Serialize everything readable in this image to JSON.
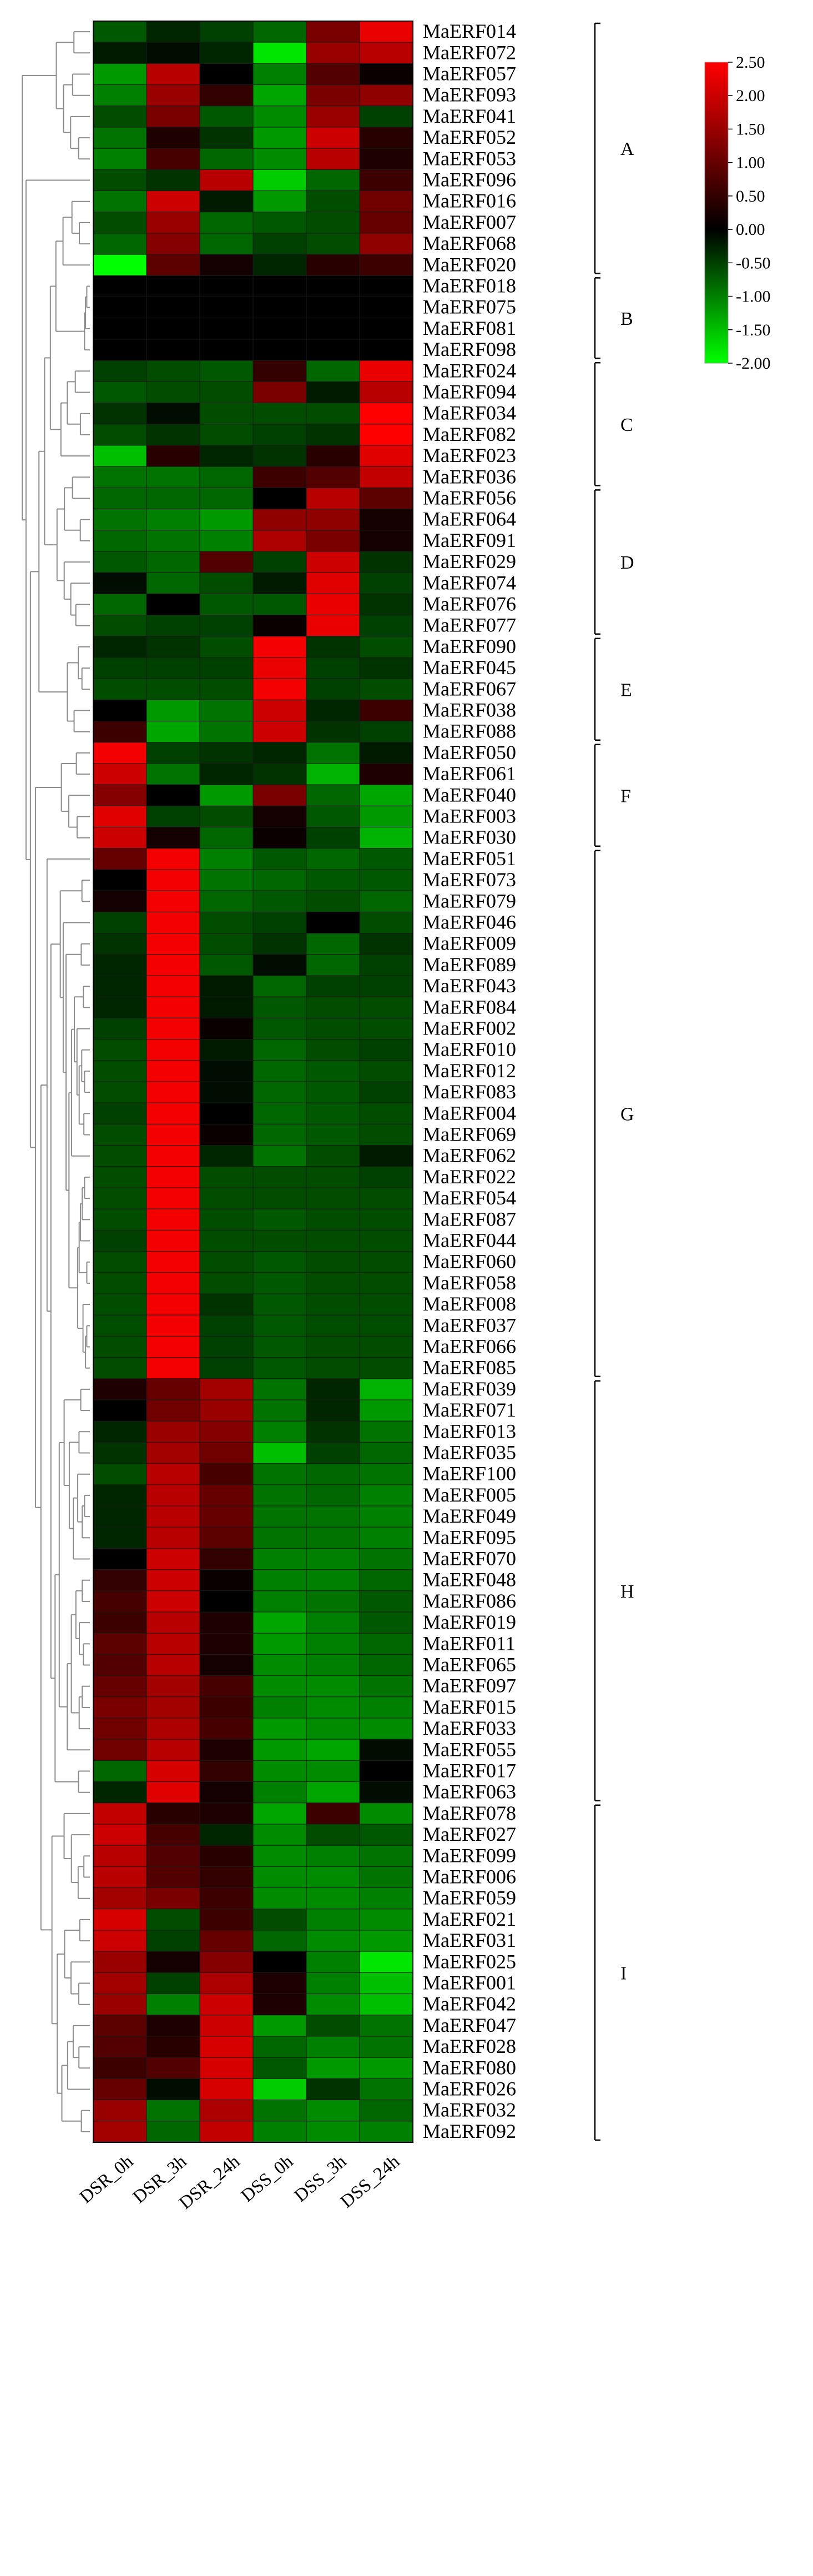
{
  "chart_data": {
    "type": "heatmap",
    "title": "",
    "columns": [
      "DSR_0h",
      "DSR_3h",
      "DSR_24h",
      "DSS_0h",
      "DSS_3h",
      "DSS_24h"
    ],
    "color_scale": {
      "min": -2.0,
      "max": 2.5,
      "colors": {
        "low": "#00ff00",
        "mid": "#000000",
        "high": "#ff0000"
      },
      "ticks": [
        "2.50",
        "2.00",
        "1.50",
        "1.00",
        "0.50",
        "0.00",
        "-0.50",
        "-1.00",
        "-1.50",
        "-2.00"
      ]
    },
    "rows": [
      {
        "gene": "MaERF014",
        "values": [
          -0.7,
          -0.3,
          -0.5,
          -0.8,
          1.2,
          2.3
        ]
      },
      {
        "gene": "MaERF072",
        "values": [
          -0.2,
          -0.1,
          -0.3,
          -1.8,
          1.5,
          1.8
        ]
      },
      {
        "gene": "MaERF057",
        "values": [
          -1.2,
          1.8,
          0.0,
          -1.0,
          0.8,
          0.1
        ]
      },
      {
        "gene": "MaERF093",
        "values": [
          -1.0,
          1.5,
          0.5,
          -1.3,
          1.2,
          1.4
        ]
      },
      {
        "gene": "MaERF041",
        "values": [
          -0.6,
          1.2,
          -0.7,
          -1.1,
          1.5,
          -0.5
        ]
      },
      {
        "gene": "MaERF052",
        "values": [
          -0.9,
          0.3,
          -0.4,
          -1.2,
          2.0,
          0.4
        ]
      },
      {
        "gene": "MaERF053",
        "values": [
          -1.0,
          0.7,
          -0.8,
          -1.1,
          1.8,
          0.3
        ]
      },
      {
        "gene": "MaERF096",
        "values": [
          -0.6,
          -0.4,
          1.8,
          -1.6,
          -0.8,
          0.6
        ]
      },
      {
        "gene": "MaERF016",
        "values": [
          -0.9,
          2.0,
          -0.2,
          -1.2,
          -0.6,
          1.1
        ]
      },
      {
        "gene": "MaERF007",
        "values": [
          -0.6,
          1.5,
          -0.8,
          -0.7,
          -0.6,
          1.0
        ]
      },
      {
        "gene": "MaERF068",
        "values": [
          -0.8,
          1.3,
          -0.8,
          -0.5,
          -0.6,
          1.4
        ]
      },
      {
        "gene": "MaERF020",
        "values": [
          -2.0,
          0.9,
          0.2,
          -0.3,
          0.4,
          0.6
        ]
      },
      {
        "gene": "MaERF018",
        "values": [
          0.0,
          0.0,
          0.0,
          0.0,
          0.0,
          0.0
        ]
      },
      {
        "gene": "MaERF075",
        "values": [
          0.0,
          0.0,
          0.0,
          0.0,
          0.0,
          0.0
        ]
      },
      {
        "gene": "MaERF081",
        "values": [
          0.0,
          0.0,
          0.0,
          0.0,
          0.0,
          0.0
        ]
      },
      {
        "gene": "MaERF098",
        "values": [
          0.0,
          0.0,
          0.0,
          0.0,
          0.0,
          0.0
        ]
      },
      {
        "gene": "MaERF024",
        "values": [
          -0.5,
          -0.6,
          -0.7,
          0.5,
          -0.8,
          2.3
        ]
      },
      {
        "gene": "MaERF094",
        "values": [
          -0.7,
          -0.6,
          -0.6,
          1.2,
          -0.2,
          1.8
        ]
      },
      {
        "gene": "MaERF034",
        "values": [
          -0.4,
          -0.1,
          -0.6,
          -0.6,
          -0.6,
          2.5
        ]
      },
      {
        "gene": "MaERF082",
        "values": [
          -0.6,
          -0.4,
          -0.6,
          -0.5,
          -0.4,
          2.5
        ]
      },
      {
        "gene": "MaERF023",
        "values": [
          -1.5,
          0.4,
          -0.3,
          -0.4,
          0.4,
          2.2
        ]
      },
      {
        "gene": "MaERF036",
        "values": [
          -0.9,
          -0.9,
          -0.8,
          0.6,
          0.8,
          1.9
        ]
      },
      {
        "gene": "MaERF056",
        "values": [
          -0.8,
          -0.8,
          -0.8,
          0.0,
          1.8,
          0.9
        ]
      },
      {
        "gene": "MaERF064",
        "values": [
          -0.9,
          -1.0,
          -1.2,
          1.4,
          1.4,
          0.2
        ]
      },
      {
        "gene": "MaERF091",
        "values": [
          -0.8,
          -0.9,
          -1.0,
          1.7,
          1.2,
          0.2
        ]
      },
      {
        "gene": "MaERF029",
        "values": [
          -0.7,
          -0.8,
          0.8,
          -0.5,
          2.0,
          -0.4
        ]
      },
      {
        "gene": "MaERF074",
        "values": [
          -0.1,
          -0.8,
          -0.6,
          -0.2,
          2.2,
          -0.5
        ]
      },
      {
        "gene": "MaERF076",
        "values": [
          -0.8,
          0.0,
          -0.7,
          -0.7,
          2.3,
          -0.4
        ]
      },
      {
        "gene": "MaERF077",
        "values": [
          -0.6,
          -0.5,
          -0.5,
          0.1,
          2.3,
          -0.5
        ]
      },
      {
        "gene": "MaERF090",
        "values": [
          -0.3,
          -0.4,
          -0.6,
          2.4,
          -0.4,
          -0.6
        ]
      },
      {
        "gene": "MaERF045",
        "values": [
          -0.5,
          -0.5,
          -0.5,
          2.3,
          -0.5,
          -0.4
        ]
      },
      {
        "gene": "MaERF067",
        "values": [
          -0.6,
          -0.6,
          -0.6,
          2.4,
          -0.5,
          -0.6
        ]
      },
      {
        "gene": "MaERF038",
        "values": [
          0.0,
          -1.2,
          -0.9,
          2.0,
          -0.3,
          0.6
        ]
      },
      {
        "gene": "MaERF088",
        "values": [
          0.6,
          -1.3,
          -0.9,
          2.0,
          -0.4,
          -0.5
        ]
      },
      {
        "gene": "MaERF050",
        "values": [
          2.4,
          -0.5,
          -0.4,
          -0.3,
          -0.9,
          -0.2
        ]
      },
      {
        "gene": "MaERF061",
        "values": [
          2.0,
          -0.9,
          -0.3,
          -0.4,
          -1.4,
          0.3
        ]
      },
      {
        "gene": "MaERF040",
        "values": [
          1.3,
          0.0,
          -1.2,
          1.2,
          -0.8,
          -1.3
        ]
      },
      {
        "gene": "MaERF003",
        "values": [
          2.2,
          -0.5,
          -0.6,
          0.2,
          -0.7,
          -1.2
        ]
      },
      {
        "gene": "MaERF030",
        "values": [
          2.0,
          0.2,
          -0.8,
          0.1,
          -0.5,
          -1.4
        ]
      },
      {
        "gene": "MaERF051",
        "values": [
          1.0,
          2.4,
          -1.0,
          -0.7,
          -0.8,
          -0.7
        ]
      },
      {
        "gene": "MaERF073",
        "values": [
          0.0,
          2.4,
          -0.9,
          -0.8,
          -0.7,
          -0.7
        ]
      },
      {
        "gene": "MaERF079",
        "values": [
          0.2,
          2.4,
          -0.8,
          -0.7,
          -0.6,
          -0.8
        ]
      },
      {
        "gene": "MaERF046",
        "values": [
          -0.5,
          2.4,
          -0.6,
          -0.5,
          0.0,
          -0.6
        ]
      },
      {
        "gene": "MaERF009",
        "values": [
          -0.4,
          2.4,
          -0.6,
          -0.4,
          -0.8,
          -0.4
        ]
      },
      {
        "gene": "MaERF089",
        "values": [
          -0.3,
          2.4,
          -0.7,
          -0.1,
          -0.8,
          -0.5
        ]
      },
      {
        "gene": "MaERF043",
        "values": [
          -0.3,
          2.4,
          -0.2,
          -0.8,
          -0.5,
          -0.5
        ]
      },
      {
        "gene": "MaERF084",
        "values": [
          -0.3,
          2.4,
          -0.2,
          -0.7,
          -0.6,
          -0.6
        ]
      },
      {
        "gene": "MaERF002",
        "values": [
          -0.5,
          2.4,
          0.1,
          -0.7,
          -0.6,
          -0.6
        ]
      },
      {
        "gene": "MaERF010",
        "values": [
          -0.6,
          2.4,
          -0.2,
          -0.8,
          -0.6,
          -0.5
        ]
      },
      {
        "gene": "MaERF012",
        "values": [
          -0.6,
          2.4,
          -0.1,
          -0.8,
          -0.7,
          -0.6
        ]
      },
      {
        "gene": "MaERF083",
        "values": [
          -0.6,
          2.4,
          -0.1,
          -0.8,
          -0.7,
          -0.5
        ]
      },
      {
        "gene": "MaERF004",
        "values": [
          -0.5,
          2.4,
          0.0,
          -0.8,
          -0.7,
          -0.6
        ]
      },
      {
        "gene": "MaERF069",
        "values": [
          -0.6,
          2.4,
          0.1,
          -0.8,
          -0.7,
          -0.6
        ]
      },
      {
        "gene": "MaERF062",
        "values": [
          -0.6,
          2.4,
          -0.3,
          -0.9,
          -0.6,
          -0.2
        ]
      },
      {
        "gene": "MaERF022",
        "values": [
          -0.6,
          2.4,
          -0.6,
          -0.6,
          -0.6,
          -0.5
        ]
      },
      {
        "gene": "MaERF054",
        "values": [
          -0.6,
          2.4,
          -0.6,
          -0.6,
          -0.6,
          -0.6
        ]
      },
      {
        "gene": "MaERF087",
        "values": [
          -0.6,
          2.4,
          -0.6,
          -0.7,
          -0.6,
          -0.6
        ]
      },
      {
        "gene": "MaERF044",
        "values": [
          -0.5,
          2.4,
          -0.6,
          -0.6,
          -0.6,
          -0.6
        ]
      },
      {
        "gene": "MaERF060",
        "values": [
          -0.6,
          2.4,
          -0.6,
          -0.7,
          -0.6,
          -0.6
        ]
      },
      {
        "gene": "MaERF058",
        "values": [
          -0.6,
          2.4,
          -0.6,
          -0.7,
          -0.6,
          -0.6
        ]
      },
      {
        "gene": "MaERF008",
        "values": [
          -0.6,
          2.4,
          -0.4,
          -0.7,
          -0.6,
          -0.6
        ]
      },
      {
        "gene": "MaERF037",
        "values": [
          -0.6,
          2.4,
          -0.5,
          -0.7,
          -0.6,
          -0.6
        ]
      },
      {
        "gene": "MaERF066",
        "values": [
          -0.6,
          2.4,
          -0.5,
          -0.7,
          -0.6,
          -0.6
        ]
      },
      {
        "gene": "MaERF085",
        "values": [
          -0.6,
          2.4,
          -0.5,
          -0.7,
          -0.6,
          -0.6
        ]
      },
      {
        "gene": "MaERF039",
        "values": [
          0.3,
          1.0,
          1.6,
          -0.9,
          -0.3,
          -1.4
        ]
      },
      {
        "gene": "MaERF071",
        "values": [
          0.0,
          1.1,
          1.5,
          -0.9,
          -0.3,
          -1.2
        ]
      },
      {
        "gene": "MaERF013",
        "values": [
          -0.3,
          1.5,
          1.3,
          -1.0,
          -0.4,
          -0.9
        ]
      },
      {
        "gene": "MaERF035",
        "values": [
          -0.4,
          1.6,
          1.1,
          -1.5,
          -0.5,
          -0.8
        ]
      },
      {
        "gene": "MaERF100",
        "values": [
          -0.6,
          1.8,
          0.7,
          -0.9,
          -0.8,
          -0.9
        ]
      },
      {
        "gene": "MaERF005",
        "values": [
          -0.3,
          1.8,
          1.0,
          -0.9,
          -0.8,
          -1.0
        ]
      },
      {
        "gene": "MaERF049",
        "values": [
          -0.3,
          1.8,
          1.0,
          -0.9,
          -0.9,
          -1.0
        ]
      },
      {
        "gene": "MaERF095",
        "values": [
          -0.3,
          1.8,
          0.9,
          -0.9,
          -0.9,
          -1.0
        ]
      },
      {
        "gene": "MaERF070",
        "values": [
          0.0,
          2.0,
          0.5,
          -1.0,
          -1.0,
          -0.9
        ]
      },
      {
        "gene": "MaERF048",
        "values": [
          0.5,
          2.0,
          0.1,
          -1.0,
          -1.0,
          -0.8
        ]
      },
      {
        "gene": "MaERF086",
        "values": [
          0.7,
          2.0,
          0.0,
          -1.0,
          -0.9,
          -0.7
        ]
      },
      {
        "gene": "MaERF019",
        "values": [
          0.6,
          1.8,
          0.3,
          -1.3,
          -1.0,
          -0.7
        ]
      },
      {
        "gene": "MaERF011",
        "values": [
          0.9,
          1.8,
          0.3,
          -1.2,
          -1.0,
          -0.8
        ]
      },
      {
        "gene": "MaERF065",
        "values": [
          0.8,
          1.8,
          0.2,
          -1.1,
          -1.0,
          -0.8
        ]
      },
      {
        "gene": "MaERF097",
        "values": [
          1.0,
          1.6,
          0.7,
          -1.1,
          -1.1,
          -0.9
        ]
      },
      {
        "gene": "MaERF015",
        "values": [
          1.2,
          1.6,
          0.6,
          -1.0,
          -1.1,
          -1.0
        ]
      },
      {
        "gene": "MaERF033",
        "values": [
          1.1,
          1.7,
          0.7,
          -1.2,
          -1.1,
          -1.1
        ]
      },
      {
        "gene": "MaERF055",
        "values": [
          1.1,
          1.8,
          0.3,
          -1.2,
          -1.3,
          -0.1
        ]
      },
      {
        "gene": "MaERF017",
        "values": [
          -0.8,
          2.1,
          0.5,
          -1.1,
          -1.1,
          0.0
        ]
      },
      {
        "gene": "MaERF063",
        "values": [
          -0.3,
          2.2,
          0.2,
          -1.0,
          -1.3,
          -0.1
        ]
      },
      {
        "gene": "MaERF078",
        "values": [
          1.9,
          0.4,
          0.3,
          -1.3,
          0.6,
          -1.1
        ]
      },
      {
        "gene": "MaERF027",
        "values": [
          2.0,
          0.7,
          -0.3,
          -1.1,
          -0.6,
          -0.7
        ]
      },
      {
        "gene": "MaERF099",
        "values": [
          1.8,
          0.8,
          0.4,
          -1.1,
          -1.0,
          -0.9
        ]
      },
      {
        "gene": "MaERF006",
        "values": [
          1.8,
          0.8,
          0.5,
          -1.1,
          -1.1,
          -0.9
        ]
      },
      {
        "gene": "MaERF059",
        "values": [
          1.6,
          1.2,
          0.6,
          -1.1,
          -1.1,
          -1.0
        ]
      },
      {
        "gene": "MaERF021",
        "values": [
          2.1,
          -0.6,
          0.6,
          -0.6,
          -1.0,
          -1.1
        ]
      },
      {
        "gene": "MaERF031",
        "values": [
          2.0,
          -0.5,
          1.0,
          -0.8,
          -1.1,
          -1.2
        ]
      },
      {
        "gene": "MaERF025",
        "values": [
          1.5,
          0.2,
          1.3,
          0.0,
          -1.0,
          -1.8
        ]
      },
      {
        "gene": "MaERF001",
        "values": [
          1.6,
          -0.5,
          1.7,
          0.3,
          -1.0,
          -1.5
        ]
      },
      {
        "gene": "MaERF042",
        "values": [
          1.5,
          -1.0,
          2.0,
          0.3,
          -1.1,
          -1.5
        ]
      },
      {
        "gene": "MaERF047",
        "values": [
          0.9,
          0.3,
          2.0,
          -1.2,
          -0.6,
          -0.9
        ]
      },
      {
        "gene": "MaERF028",
        "values": [
          0.8,
          0.4,
          2.1,
          -0.8,
          -1.0,
          -0.9
        ]
      },
      {
        "gene": "MaERF080",
        "values": [
          0.6,
          0.8,
          2.1,
          -0.7,
          -1.2,
          -1.2
        ]
      },
      {
        "gene": "MaERF026",
        "values": [
          1.0,
          -0.1,
          2.1,
          -1.6,
          -0.4,
          -0.9
        ]
      },
      {
        "gene": "MaERF032",
        "values": [
          1.5,
          -0.9,
          1.7,
          -0.9,
          -1.1,
          -0.8
        ]
      },
      {
        "gene": "MaERF092",
        "values": [
          1.6,
          -0.8,
          1.9,
          -1.0,
          -1.1,
          -1.0
        ]
      }
    ],
    "groups": [
      {
        "label": "A",
        "first": 0,
        "last": 11
      },
      {
        "label": "B",
        "first": 12,
        "last": 15
      },
      {
        "label": "C",
        "first": 16,
        "last": 21
      },
      {
        "label": "D",
        "first": 22,
        "last": 28
      },
      {
        "label": "E",
        "first": 29,
        "last": 33
      },
      {
        "label": "F",
        "first": 34,
        "last": 38
      },
      {
        "label": "G",
        "first": 39,
        "last": 63
      },
      {
        "label": "H",
        "first": 64,
        "last": 83
      },
      {
        "label": "I",
        "first": 84,
        "last": 99
      }
    ]
  }
}
